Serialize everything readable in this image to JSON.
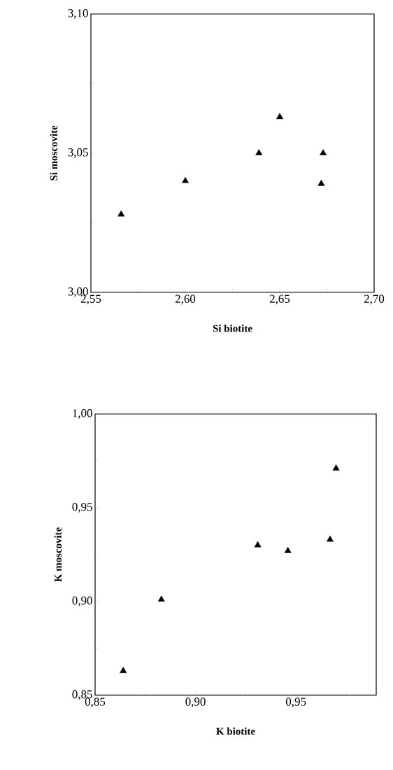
{
  "chart_data": [
    {
      "type": "scatter",
      "xlabel": "Si biotite",
      "ylabel": "Si moscovite",
      "marker": "triangle",
      "grid": false,
      "xlim": [
        2.55,
        2.7
      ],
      "ylim": [
        3.0,
        3.1
      ],
      "xticks": [
        {
          "value": 2.55,
          "label": "2,55"
        },
        {
          "value": 2.575,
          "label": null
        },
        {
          "value": 2.6,
          "label": "2,60"
        },
        {
          "value": 2.625,
          "label": null
        },
        {
          "value": 2.65,
          "label": "2,65"
        },
        {
          "value": 2.675,
          "label": null
        },
        {
          "value": 2.7,
          "label": "2,70"
        }
      ],
      "yticks": [
        {
          "value": 3.0,
          "label": "3,00"
        },
        {
          "value": 3.025,
          "label": null
        },
        {
          "value": 3.05,
          "label": "3,05"
        },
        {
          "value": 3.075,
          "label": null
        },
        {
          "value": 3.1,
          "label": "3,10"
        }
      ],
      "series": [
        {
          "color": "#000000",
          "x": [
            2.566,
            2.6,
            2.639,
            2.65,
            2.673,
            2.672
          ],
          "values": [
            3.028,
            3.04,
            3.05,
            3.063,
            3.05,
            3.039
          ]
        }
      ]
    },
    {
      "type": "scatter",
      "xlabel": "K biotite",
      "ylabel": "K moscovite",
      "marker": "triangle",
      "grid": false,
      "xlim": [
        0.85,
        0.99
      ],
      "ylim": [
        0.85,
        1.0
      ],
      "xticks": [
        {
          "value": 0.85,
          "label": "0,85"
        },
        {
          "value": 0.875,
          "label": null
        },
        {
          "value": 0.9,
          "label": "0,90"
        },
        {
          "value": 0.925,
          "label": null
        },
        {
          "value": 0.95,
          "label": "0,95"
        },
        {
          "value": 0.975,
          "label": null
        }
      ],
      "yticks": [
        {
          "value": 0.85,
          "label": "0,85"
        },
        {
          "value": 0.875,
          "label": null
        },
        {
          "value": 0.9,
          "label": "0,90"
        },
        {
          "value": 0.925,
          "label": null
        },
        {
          "value": 0.95,
          "label": "0,95"
        },
        {
          "value": 0.975,
          "label": null
        },
        {
          "value": 1.0,
          "label": "1,00"
        }
      ],
      "series": [
        {
          "color": "#000000",
          "x": [
            0.864,
            0.883,
            0.931,
            0.946,
            0.967,
            0.97
          ],
          "values": [
            0.863,
            0.901,
            0.93,
            0.927,
            0.933,
            0.971
          ]
        }
      ]
    }
  ]
}
